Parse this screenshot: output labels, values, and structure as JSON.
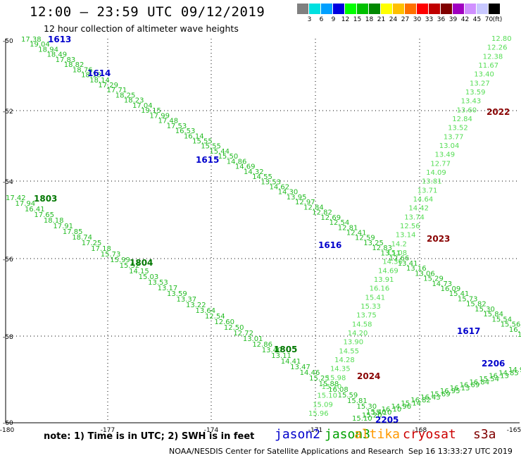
{
  "title": "12:00 – 23:59 UTC 09/12/2019",
  "subtitle": "12 hour collection of altimeter wave heights",
  "colorbar": {
    "colors": [
      "#808080",
      "#00e0e0",
      "#00a0ff",
      "#0000e0",
      "#00ff00",
      "#00c000",
      "#008800",
      "#ffff00",
      "#ffc000",
      "#ff7000",
      "#ff0000",
      "#c00000",
      "#800000",
      "#a000c0",
      "#d090ff",
      "#c8c8ff",
      "#000000"
    ],
    "labels": [
      "3",
      "6",
      "9",
      "12",
      "15",
      "18",
      "21",
      "24",
      "27",
      "30",
      "33",
      "36",
      "39",
      "42",
      "45",
      "70"
    ],
    "unit": "(ft)"
  },
  "axes": {
    "x_ticks": [
      "-180",
      "-177",
      "-174",
      "-171",
      "-168",
      "-165"
    ],
    "y_ticks": [
      "-50",
      "-52",
      "-54",
      "-56",
      "-58",
      "-60"
    ]
  },
  "passes": [
    {
      "id": "1613",
      "sat": "jason2",
      "values": [
        "17.38",
        "19.04",
        "18.94",
        "18.49",
        "17.83",
        "18.82",
        "18.76",
        "18.18",
        "18.14",
        "17.29",
        "17.71",
        "18.25",
        "18.23",
        "17.04",
        "19.15",
        "17.99",
        "17.48",
        "17.53",
        "16.53",
        "16.14",
        "15.55",
        "15.55",
        "15.44",
        "15.50",
        "14.86",
        "14.69",
        "14.32",
        "14.55",
        "13.53",
        "14.62",
        "14.30",
        "13.95",
        "12.97",
        "12.84",
        "12.82",
        "12.69",
        "12.54",
        "12.81",
        "12.41",
        "12.59",
        "13.25",
        "12.83",
        "13.11",
        "12.66",
        "13.41",
        "13.16",
        "13.06",
        "15.29",
        "14.73",
        "16.09",
        "15.41",
        "15.73",
        "15.82",
        "15.30",
        "15.84",
        "15.54",
        "15.56",
        "16.14",
        "16.37"
      ]
    },
    {
      "id": "1803",
      "sat": "jason3",
      "values": [
        "17.42",
        "17.94",
        "16.41",
        "17.65",
        "18.18",
        "17.91",
        "17.85",
        "18.74",
        "17.25",
        "17.18",
        "15.73",
        "15.99",
        "15.52",
        "14.15",
        "15.03",
        "13.53",
        "13.17",
        "13.59",
        "13.37",
        "13.22",
        "13.64",
        "12.54",
        "12.60",
        "12.50",
        "12.72",
        "13.01",
        "12.86",
        "13.40",
        "13.11",
        "14.41",
        "13.47",
        "14.46",
        "15.25",
        "15.88",
        "16.08",
        "15.59",
        "15.81",
        "15.30",
        "15.40"
      ]
    },
    {
      "id": "2024",
      "sat": "cryosat",
      "values": [
        "15.96",
        "15.09",
        "15.10",
        "15.10",
        "15.98",
        "14.35",
        "14.28",
        "14.55",
        "13.90",
        "14.20",
        "14.58",
        "13.75",
        "15.33",
        "15.41",
        "16.16",
        "13.91",
        "14.69",
        "14.36",
        "15.08",
        "14.2",
        "13.14",
        "12.56",
        "13.74",
        "14.42",
        "14.64",
        "13.71",
        "13.81",
        "14.09",
        "12.77",
        "13.49",
        "13.04",
        "13.77",
        "13.52",
        "12.84",
        "13.60",
        "13.43",
        "13.59",
        "13.27",
        "13.40",
        "11.67",
        "12.38",
        "12.26",
        "12.80"
      ]
    },
    {
      "id": "2205",
      "sat": "jason2",
      "values": [
        "15.10",
        "15.20",
        "15.10",
        "16.10",
        "14.96",
        "15.14",
        "16.82",
        "16.43",
        "15.69",
        "16.95",
        "16.13",
        "16.69",
        "16.84",
        "15.54",
        "16.13",
        "14.85",
        "14.95"
      ]
    }
  ],
  "markers": {
    "1613": "1613",
    "1614": "1614",
    "1615": "1615",
    "1616": "1616",
    "1617": "1617",
    "1803": "1803",
    "1804": "1804",
    "1805": "1805",
    "2022": "2022",
    "2023": "2023",
    "2024": "2024",
    "2205": "2205",
    "2206": "2206"
  },
  "note": "note:  1) Time is in UTC;  2) SWH is in feet",
  "legend": [
    {
      "name": "jason2",
      "color": "#0000cc"
    },
    {
      "name": "jason3",
      "color": "#00a000"
    },
    {
      "name": "altika",
      "color": "#ff9900"
    },
    {
      "name": "cryosat",
      "color": "#cc0000"
    },
    {
      "name": "s3a",
      "color": "#800000"
    }
  ],
  "footer": "NOAA/NESDIS Center for Satellite Applications and Research",
  "stamp": "Sep 16 13:33:27 UTC 2019"
}
